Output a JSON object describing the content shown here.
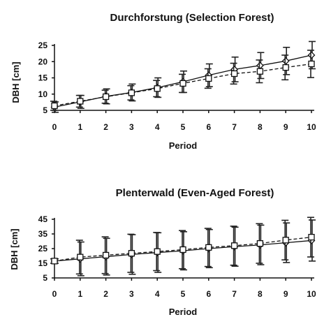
{
  "chart_data": [
    {
      "type": "line",
      "title": "Durchforstung (Selection Forest)",
      "xlabel": "Period",
      "ylabel": "DBH [cm]",
      "x": [
        0,
        1,
        2,
        3,
        4,
        5,
        6,
        7,
        8,
        9,
        10
      ],
      "xticks": [
        "0",
        "1",
        "2",
        "3",
        "4",
        "5",
        "6",
        "7",
        "8",
        "9",
        "10"
      ],
      "yticks": [
        "5",
        "10",
        "15",
        "20",
        "25"
      ],
      "ylim": [
        5,
        25
      ],
      "grid": false,
      "series": [
        {
          "marker": "diamond",
          "line_style": "solid",
          "values": [
            6.0,
            7.6,
            9.3,
            10.5,
            12.0,
            13.8,
            15.8,
            17.6,
            18.8,
            20.2,
            22.0
          ],
          "error": [
            1.6,
            2.0,
            2.3,
            2.6,
            3.0,
            3.3,
            3.5,
            3.8,
            4.0,
            4.2,
            4.2
          ]
        },
        {
          "marker": "square",
          "line_style": "dashed",
          "values": [
            6.4,
            7.8,
            9.2,
            10.4,
            11.7,
            13.3,
            14.8,
            16.3,
            17.0,
            18.2,
            19.3
          ],
          "error": [
            1.4,
            1.8,
            2.0,
            2.2,
            2.5,
            2.8,
            3.0,
            3.2,
            3.5,
            3.8,
            4.2
          ]
        }
      ]
    },
    {
      "type": "line",
      "title": "Plenterwald (Even-Aged Forest)",
      "xlabel": "Period",
      "ylabel": "DBH [cm]",
      "x": [
        0,
        1,
        2,
        3,
        4,
        5,
        6,
        7,
        8,
        9,
        10
      ],
      "xticks": [
        "0",
        "1",
        "2",
        "3",
        "4",
        "5",
        "6",
        "7",
        "8",
        "9",
        "10"
      ],
      "yticks": [
        "5",
        "15",
        "25",
        "35",
        "45"
      ],
      "ylim": [
        5,
        45
      ],
      "grid": false,
      "series": [
        {
          "marker": "diamond",
          "line_style": "solid",
          "values": [
            16.5,
            18.0,
            19.5,
            21.0,
            22.3,
            23.5,
            25.0,
            26.3,
            27.5,
            29.0,
            30.5
          ],
          "error": [
            1.5,
            11.5,
            12.5,
            13.5,
            13.5,
            13.0,
            13.0,
            13.3,
            13.5,
            13.5,
            14.0
          ]
        },
        {
          "marker": "square",
          "line_style": "dashed",
          "values": [
            16.5,
            19.2,
            20.5,
            21.8,
            23.0,
            24.3,
            25.8,
            27.0,
            28.5,
            30.8,
            32.8
          ],
          "error": [
            1.5,
            11.5,
            12.5,
            13.0,
            13.0,
            13.0,
            13.0,
            13.3,
            13.5,
            13.5,
            13.5
          ]
        }
      ]
    }
  ]
}
